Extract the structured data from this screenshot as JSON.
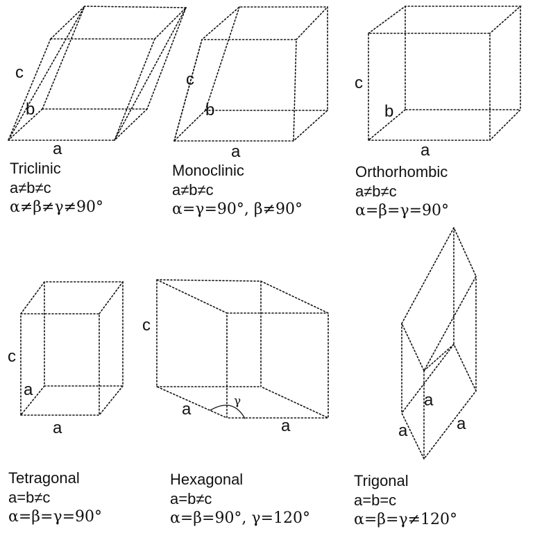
{
  "systems": [
    {
      "id": "triclinic",
      "name": "Triclinic",
      "lengths": "a≠b≠c",
      "angles": "α≠β≠γ≠90°",
      "axis_labels": [
        "c",
        "b",
        "a"
      ]
    },
    {
      "id": "monoclinic",
      "name": "Monoclinic",
      "lengths": "a≠b≠c",
      "angles": "α=γ=90°, β≠90°",
      "axis_labels": [
        "c",
        "b",
        "a"
      ]
    },
    {
      "id": "orthorhombic",
      "name": "Orthorhombic",
      "lengths": "a≠b≠c",
      "angles": "α=β=γ=90°",
      "axis_labels": [
        "c",
        "b",
        "a"
      ]
    },
    {
      "id": "tetragonal",
      "name": "Tetragonal",
      "lengths": "a=b≠c",
      "angles": "α=β=γ=90°",
      "axis_labels": [
        "c",
        "a",
        "a"
      ]
    },
    {
      "id": "hexagonal",
      "name": "Hexagonal",
      "lengths": "a=b≠c",
      "angles": "α=β=90°, γ=120°",
      "axis_labels": [
        "c",
        "a",
        "a"
      ],
      "angle_label": "γ"
    },
    {
      "id": "trigonal",
      "name": "Trigonal",
      "lengths": "a=b=c",
      "angles": "α=β=γ≠120°",
      "axis_labels": [
        "a",
        "a",
        "a"
      ]
    }
  ],
  "colors": {
    "line": "#111111",
    "background": "#ffffff"
  }
}
